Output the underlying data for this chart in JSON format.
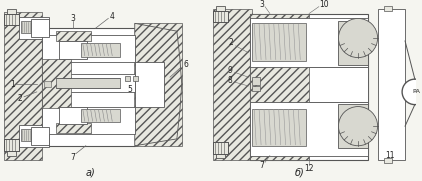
{
  "bg_color": "#f5f5f0",
  "fig_width": 4.22,
  "fig_height": 1.81,
  "dpi": 100,
  "label_a": "а)",
  "label_b": "б)",
  "lc": "#555555",
  "tc": "#222222",
  "hatch_fc": "#e8e8e0",
  "white": "#ffffff",
  "gray_light": "#d8d8d0",
  "gray_mid": "#b0b0a8"
}
